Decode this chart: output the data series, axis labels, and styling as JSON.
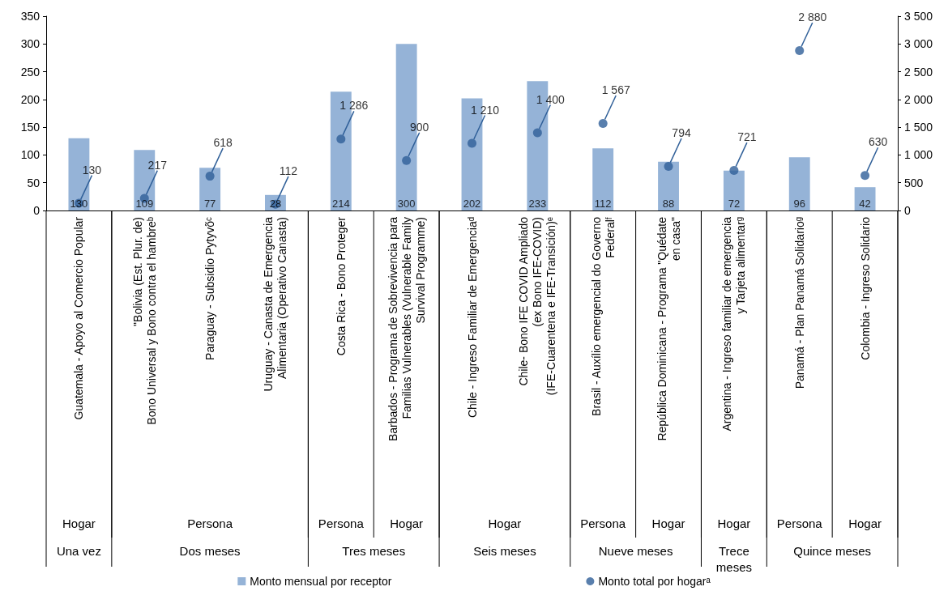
{
  "chart_data": {
    "type": "bar",
    "categories": [
      "Guatemala - Apoyo al Comercio Popular",
      "\"Bolivia (Est. Plur. de)\nBono Universal y Bono contra el hambreᵇ",
      "Paraguay - Subsidio Pytyvõᶜ",
      "Uruguay - Canasta de Emergencia\nAlimentaria (Operativo Canasta)",
      "Costa Rica - Bono Proteger",
      "Barbados - Programa de Sobrevivencia para\nFamilias Vulnerables (Vulnerable Family\nSurvival Programme)",
      "Chile - Ingreso Familiar de Emergenciaᵈ",
      "Chile- Bono IFE COVID Ampliado\n(ex Bono IFE-COVID)\n(IFE-Cuarentena e IFE-Transición)ᵉ",
      "Brasil - Auxílio emergencial do Governo\nFederalᶠ",
      "República Dominicana - Programa \"Quédate\nen casa\"",
      "Argentina - Ingreso familiar de emergencia\ny Tarjeta alimentarᵍ",
      "Panamá - Plan Panamá Solidarioᵍ",
      "Colombia - Ingreso Solidario"
    ],
    "series": [
      {
        "name": "Monto mensual por receptor",
        "color": "#95b3d7",
        "values": [
          130,
          109,
          77,
          28,
          214,
          300,
          202,
          233,
          112,
          88,
          72,
          96,
          42
        ],
        "value_labels": [
          "130",
          "109",
          "77",
          "28",
          "214",
          "300",
          "202",
          "233",
          "112",
          "88",
          "72",
          "96",
          "42"
        ]
      },
      {
        "name": "Monto total por hogarᵃ",
        "type": "scatter",
        "axis": "y2",
        "color": "#2f5f98",
        "marker": "circle",
        "values": [
          130,
          217,
          618,
          112,
          1286,
          900,
          1210,
          1400,
          1567,
          794,
          721,
          2880,
          630
        ],
        "value_labels": [
          "130",
          "217",
          "618",
          "112",
          "1 286",
          "900",
          "1 210",
          "1 400",
          "1 567",
          "794",
          "721",
          "2 880",
          "630"
        ]
      }
    ],
    "ylim": [
      0,
      350
    ],
    "yticks": [
      0,
      50,
      100,
      150,
      200,
      250,
      300,
      350
    ],
    "y2lim": [
      0,
      3500
    ],
    "y2ticks": [
      0,
      {
        "value": 500,
        "label": "500"
      },
      {
        "value": 1000,
        "label": "1 000"
      },
      {
        "value": 1500,
        "label": "1 500"
      },
      {
        "value": 2000,
        "label": "2 000"
      },
      {
        "value": 2500,
        "label": "2 500"
      },
      {
        "value": 3000,
        "label": "3 000"
      },
      {
        "value": 3500,
        "label": "3 500"
      }
    ],
    "grid": false,
    "legend": "bottom",
    "annotations": [
      "Hogar",
      "Persona",
      "Persona",
      "Hogar",
      "Hogar",
      "Persona",
      "Hogar",
      "Hogar",
      "Persona",
      "Hogar",
      "Una vez",
      "Dos meses",
      "Tres meses",
      "Seis meses",
      "Nueve meses",
      "Trece\nmeses",
      "Quince meses"
    ]
  }
}
